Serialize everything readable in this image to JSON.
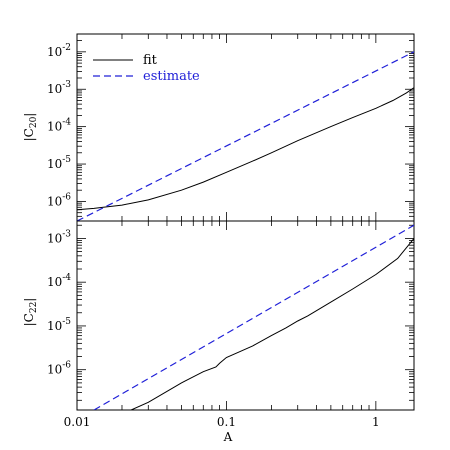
{
  "chart_data": [
    {
      "type": "line",
      "panel": "top",
      "title": "",
      "xlabel": "",
      "ylabel_main": "|C",
      "ylabel_sub": "20",
      "ylabel_end": "|",
      "xscale": "log",
      "yscale": "log",
      "xlim": [
        0.01,
        1.8
      ],
      "ylim": [
        3e-07,
        0.03
      ],
      "ytick_labels": [
        {
          "base": "10",
          "exp": "-6",
          "value": 1e-06
        },
        {
          "base": "10",
          "exp": "-5",
          "value": 1e-05
        },
        {
          "base": "10",
          "exp": "-4",
          "value": 0.0001
        },
        {
          "base": "10",
          "exp": "-3",
          "value": 0.001
        },
        {
          "base": "10",
          "exp": "-2",
          "value": 0.01
        }
      ],
      "legend": {
        "placement": "top-left",
        "items": [
          "fit",
          "estimate"
        ]
      },
      "colors": {
        "fit": "#000000",
        "estimate": "#2020d8"
      },
      "series": [
        {
          "name": "fit",
          "x": [
            0.01,
            0.013,
            0.015,
            0.02,
            0.03,
            0.05,
            0.07,
            0.1,
            0.15,
            0.2,
            0.3,
            0.5,
            0.7,
            1.0,
            1.3,
            1.6,
            1.8
          ],
          "y": [
            6e-07,
            6.5e-07,
            7e-07,
            8e-07,
            1.1e-06,
            2e-06,
            3.3e-06,
            6e-06,
            1.2e-05,
            2e-05,
            4.2e-05,
            0.0001,
            0.000175,
            0.00031,
            0.0005,
            0.0008,
            0.0011
          ]
        },
        {
          "name": "estimate",
          "x": [
            0.01,
            1.8
          ],
          "y": [
            3e-07,
            0.01
          ]
        }
      ]
    },
    {
      "type": "line",
      "panel": "bottom",
      "title": "",
      "xlabel": "A",
      "ylabel_main": "|C",
      "ylabel_sub": "22",
      "ylabel_end": "|",
      "xscale": "log",
      "yscale": "log",
      "xlim": [
        0.01,
        1.8
      ],
      "ylim": [
        1.2e-07,
        0.0025
      ],
      "xtick_labels": [
        {
          "label": "0.01",
          "value": 0.01
        },
        {
          "label": "0.1",
          "value": 0.1
        },
        {
          "label": "1",
          "value": 1
        }
      ],
      "ytick_labels": [
        {
          "base": "10",
          "exp": "-6",
          "value": 1e-06
        },
        {
          "base": "10",
          "exp": "-5",
          "value": 1e-05
        },
        {
          "base": "10",
          "exp": "-4",
          "value": 0.0001
        },
        {
          "base": "10",
          "exp": "-3",
          "value": 0.001
        }
      ],
      "series": [
        {
          "name": "fit",
          "x": [
            0.023,
            0.03,
            0.05,
            0.07,
            0.085,
            0.09,
            0.1,
            0.12,
            0.15,
            0.2,
            0.25,
            0.3,
            0.35,
            0.5,
            0.7,
            1.0,
            1.4,
            1.8
          ],
          "y": [
            1.2e-07,
            1.8e-07,
            5e-07,
            9e-07,
            1.15e-06,
            1.4e-06,
            1.9e-06,
            2.5e-06,
            3.5e-06,
            6e-06,
            9e-06,
            1.3e-05,
            1.7e-05,
            3.5e-05,
            7e-05,
            0.00015,
            0.00035,
            0.001
          ]
        },
        {
          "name": "estimate",
          "x": [
            0.013,
            1.8
          ],
          "y": [
            1.2e-07,
            0.002
          ]
        }
      ]
    }
  ]
}
